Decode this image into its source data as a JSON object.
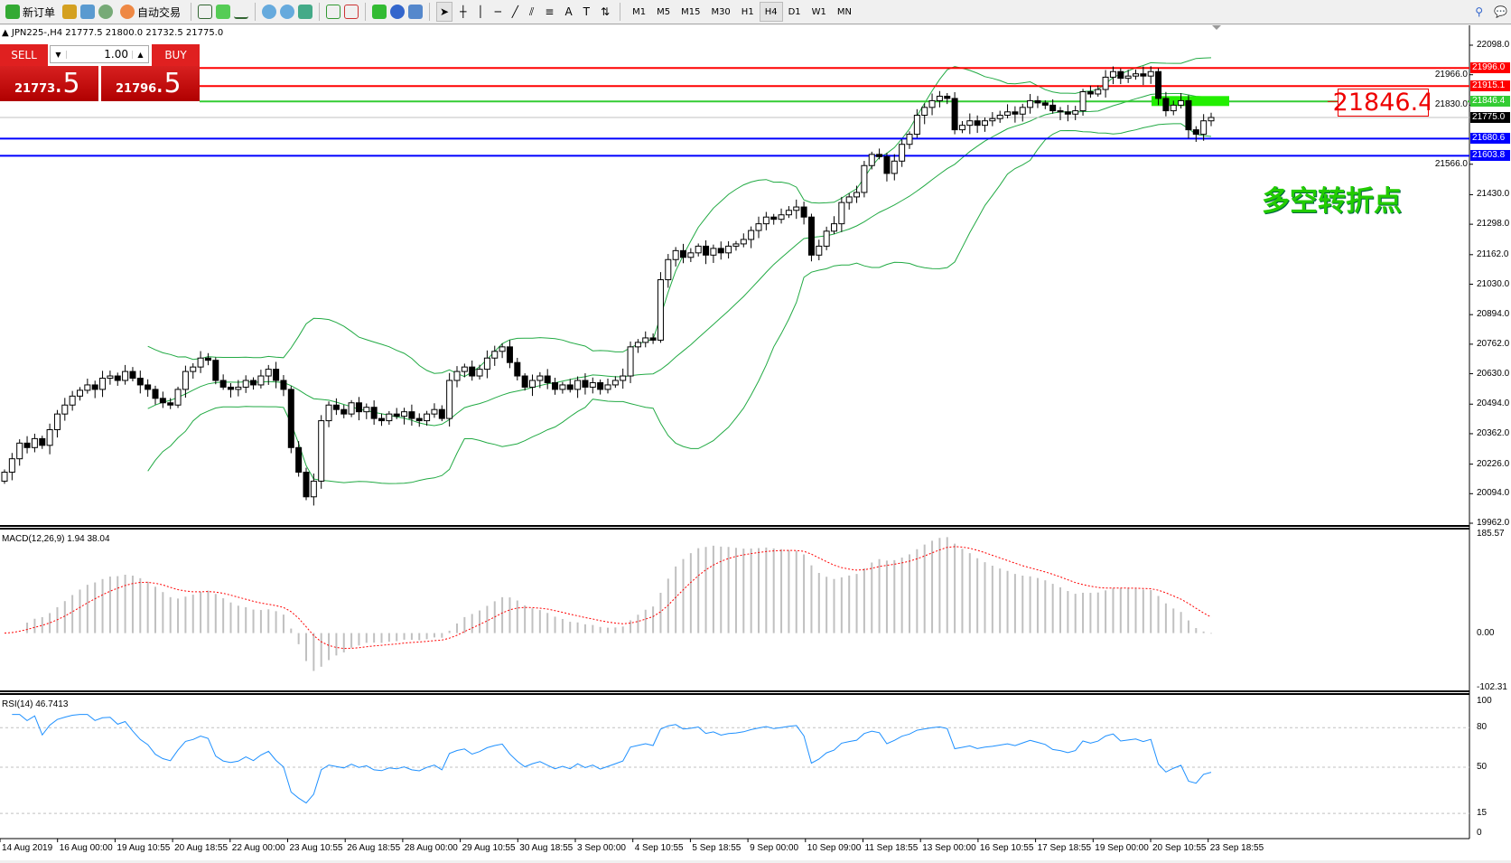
{
  "toolbar": {
    "new_order": "新订单",
    "auto_trade": "自动交易",
    "timeframes": [
      "M1",
      "M5",
      "M15",
      "M30",
      "H1",
      "H4",
      "D1",
      "W1",
      "MN"
    ],
    "active_timeframe": "H4"
  },
  "symbol_info": "JPN225-,H4  21777.5 21800.0 21732.5 21775.0",
  "trade_panel": {
    "sell_label": "SELL",
    "buy_label": "BUY",
    "lot": "1.00",
    "sell_big": "21773",
    "sell_frac": ".5",
    "buy_big": "21796",
    "buy_frac": ".5"
  },
  "annotation": {
    "price_box": "21846.4",
    "text": "多空转折点",
    "text_color": "#22cc00"
  },
  "hlines": [
    {
      "price": 21996.0,
      "label": "21996.0",
      "color": "#ff0000",
      "from_panel": true
    },
    {
      "price": 21915.1,
      "label": "21915.1",
      "color": "#ff0000",
      "from_panel": true
    },
    {
      "price": 21846.4,
      "label": "21846.4",
      "color": "#33cc33",
      "from_panel": true
    },
    {
      "price": 21680.6,
      "label": "21680.6",
      "color": "#0000ff",
      "from_panel": false
    },
    {
      "price": 21603.8,
      "label": "21603.8",
      "color": "#0000ff",
      "from_panel": false
    }
  ],
  "current_price": {
    "price": 21775.0,
    "label": "21775.0"
  },
  "price_axis": {
    "min": 19962.0,
    "max": 22098.0,
    "ticks": [
      "22098.0",
      "21966.0",
      "21830.0",
      "21566.0",
      "21430.0",
      "21298.0",
      "21162.0",
      "21030.0",
      "20894.0",
      "20762.0",
      "20630.0",
      "20494.0",
      "20362.0",
      "20226.0",
      "20094.0",
      "19962.0"
    ]
  },
  "macd": {
    "label": "MACD(12,26,9) 1.94 38.04",
    "max": 185.57,
    "min": -102.31,
    "ticks": [
      "185.57",
      "0.00",
      "-102.31"
    ]
  },
  "rsi": {
    "label": "RSI(14) 46.7413",
    "ticks": [
      "100",
      "80",
      "50",
      "15",
      "0"
    ],
    "levels": [
      80,
      50,
      15
    ]
  },
  "time_axis": [
    "14 Aug 2019",
    "16 Aug 00:00",
    "19 Aug 10:55",
    "20 Aug 18:55",
    "22 Aug 00:00",
    "23 Aug 10:55",
    "26 Aug 18:55",
    "28 Aug 00:00",
    "29 Aug 10:55",
    "30 Aug 18:55",
    "3 Sep 00:00",
    "4 Sep 10:55",
    "5 Sep 18:55",
    "9 Sep 00:00",
    "10 Sep 09:00",
    "11 Sep 18:55",
    "13 Sep 00:00",
    "16 Sep 10:55",
    "17 Sep 18:55",
    "19 Sep 00:00",
    "20 Sep 10:55",
    "23 Sep 18:55"
  ],
  "closes": [
    20190,
    20250,
    20320,
    20300,
    20340,
    20310,
    20380,
    20450,
    20490,
    20530,
    20556,
    20580,
    20560,
    20610,
    20620,
    20600,
    20640,
    20610,
    20580,
    20560,
    20520,
    20500,
    20490,
    20560,
    20640,
    20660,
    20700,
    20690,
    20600,
    20570,
    20560,
    20570,
    20600,
    20580,
    20620,
    20650,
    20600,
    20560,
    20300,
    20190,
    20080,
    20150,
    20420,
    20490,
    20470,
    20450,
    20500,
    20460,
    20480,
    20430,
    20420,
    20450,
    20440,
    20460,
    20430,
    20420,
    20450,
    20470,
    20430,
    20600,
    20640,
    20660,
    20620,
    20650,
    20700,
    20730,
    20750,
    20680,
    20620,
    20570,
    20600,
    20620,
    20590,
    20560,
    20580,
    20560,
    20600,
    20570,
    20590,
    20560,
    20580,
    20600,
    20620,
    20750,
    20770,
    20790,
    20780,
    21050,
    21140,
    21180,
    21150,
    21170,
    21200,
    21160,
    21190,
    21170,
    21200,
    21210,
    21230,
    21270,
    21300,
    21330,
    21320,
    21340,
    21360,
    21375,
    21330,
    21160,
    21200,
    21267,
    21300,
    21395,
    21420,
    21440,
    21560,
    21610,
    21600,
    21525,
    21580,
    21655,
    21700,
    21785,
    21820,
    21850,
    21870,
    21860,
    21720,
    21740,
    21760,
    21740,
    21760,
    21770,
    21785,
    21800,
    21790,
    21820,
    21850,
    21840,
    21830,
    21805,
    21800,
    21790,
    21805,
    21890,
    21880,
    21900,
    21955,
    21980,
    21950,
    21960,
    21970,
    21960,
    21980,
    21860,
    21805,
    21830,
    21850,
    21720,
    21700,
    21760,
    21775
  ],
  "colors": {
    "bands": "#22aa44",
    "macd_hist": "#c0c0c0",
    "macd_signal": "#ff0000",
    "rsi": "#1e90ff"
  }
}
